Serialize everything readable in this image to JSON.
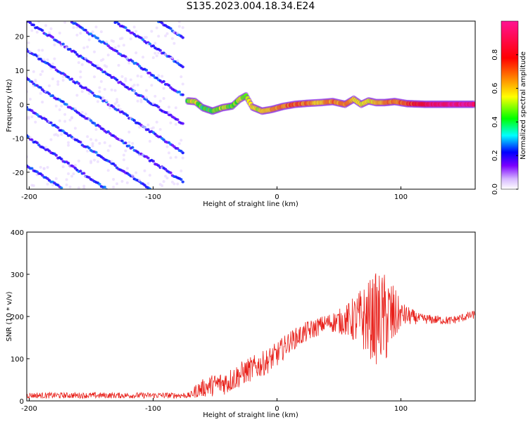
{
  "chart_data": [
    {
      "type": "heatmap",
      "title": "S135.2023.004.18.34.E24",
      "xlabel": "Height of straight line (km)",
      "ylabel": "Frequency (Hz)",
      "xlim": [
        -202,
        160
      ],
      "ylim": [
        -25,
        24.5
      ],
      "x_ticks": [
        -200,
        -100,
        0,
        100
      ],
      "y_ticks": [
        -20,
        -10,
        0,
        10,
        20
      ],
      "colorbar": {
        "label": "Normalized spectral amplitude",
        "range": [
          0,
          1
        ],
        "ticks": [
          0.0,
          0.2,
          0.4,
          0.6,
          0.8
        ],
        "colors": [
          "#ffffff",
          "#7b00ff",
          "#0000ff",
          "#00ffff",
          "#00ff00",
          "#ffff00",
          "#ff0000",
          "#ff1493"
        ]
      },
      "striations_left": {
        "x_range": [
          -202,
          -75
        ],
        "slope_hz_per_km": -0.24,
        "spacing_hz": 8.5,
        "amplitude": 0.15
      },
      "ridge": [
        {
          "x": -72,
          "y": 1.0,
          "a": 0.45
        },
        {
          "x": -66,
          "y": 0.8,
          "a": 0.55
        },
        {
          "x": -60,
          "y": -1.0,
          "a": 0.4
        },
        {
          "x": -52,
          "y": -2.0,
          "a": 0.45
        },
        {
          "x": -44,
          "y": -1.0,
          "a": 0.5
        },
        {
          "x": -36,
          "y": -0.5,
          "a": 0.45
        },
        {
          "x": -30,
          "y": 1.5,
          "a": 0.5
        },
        {
          "x": -25,
          "y": 2.5,
          "a": 0.45
        },
        {
          "x": -20,
          "y": -0.8,
          "a": 0.55
        },
        {
          "x": -12,
          "y": -2.0,
          "a": 0.55
        },
        {
          "x": -4,
          "y": -1.5,
          "a": 0.6
        },
        {
          "x": 5,
          "y": -0.6,
          "a": 0.65
        },
        {
          "x": 15,
          "y": 0.0,
          "a": 0.7
        },
        {
          "x": 25,
          "y": 0.3,
          "a": 0.65
        },
        {
          "x": 35,
          "y": 0.5,
          "a": 0.6
        },
        {
          "x": 45,
          "y": 0.8,
          "a": 0.65
        },
        {
          "x": 55,
          "y": 0.0,
          "a": 0.65
        },
        {
          "x": 62,
          "y": 1.5,
          "a": 0.55
        },
        {
          "x": 68,
          "y": 0.0,
          "a": 0.55
        },
        {
          "x": 74,
          "y": 1.0,
          "a": 0.55
        },
        {
          "x": 80,
          "y": 0.5,
          "a": 0.55
        },
        {
          "x": 87,
          "y": 0.5,
          "a": 0.7
        },
        {
          "x": 95,
          "y": 0.8,
          "a": 0.65
        },
        {
          "x": 105,
          "y": 0.2,
          "a": 0.7
        },
        {
          "x": 120,
          "y": 0.0,
          "a": 0.85
        },
        {
          "x": 140,
          "y": 0.0,
          "a": 0.95
        },
        {
          "x": 160,
          "y": 0.0,
          "a": 0.95
        }
      ]
    },
    {
      "type": "line",
      "xlabel": "Height of straight line (km)",
      "ylabel": "SNR (10 * v/v)",
      "xlim": [
        -202,
        160
      ],
      "ylim": [
        0,
        400
      ],
      "x_ticks": [
        -200,
        -100,
        0,
        100
      ],
      "y_ticks": [
        0,
        100,
        200,
        300,
        400
      ],
      "series": [
        {
          "color": "#e8201a",
          "trend": [
            {
              "x": -202,
              "mean": 13,
              "noise": 7
            },
            {
              "x": -70,
              "mean": 13,
              "noise": 7
            },
            {
              "x": -65,
              "mean": 25,
              "noise": 18
            },
            {
              "x": -55,
              "mean": 35,
              "noise": 25
            },
            {
              "x": -40,
              "mean": 45,
              "noise": 30
            },
            {
              "x": -25,
              "mean": 70,
              "noise": 30
            },
            {
              "x": -10,
              "mean": 90,
              "noise": 30
            },
            {
              "x": 0,
              "mean": 110,
              "noise": 30
            },
            {
              "x": 10,
              "mean": 140,
              "noise": 25
            },
            {
              "x": 25,
              "mean": 165,
              "noise": 25
            },
            {
              "x": 40,
              "mean": 185,
              "noise": 20
            },
            {
              "x": 55,
              "mean": 190,
              "noise": 35
            },
            {
              "x": 70,
              "mean": 195,
              "noise": 80
            },
            {
              "x": 80,
              "mean": 195,
              "noise": 110
            },
            {
              "x": 90,
              "mean": 195,
              "noise": 110
            },
            {
              "x": 100,
              "mean": 205,
              "noise": 30
            },
            {
              "x": 115,
              "mean": 195,
              "noise": 12
            },
            {
              "x": 140,
              "mean": 190,
              "noise": 10
            },
            {
              "x": 160,
              "mean": 205,
              "noise": 10
            }
          ]
        }
      ]
    }
  ]
}
